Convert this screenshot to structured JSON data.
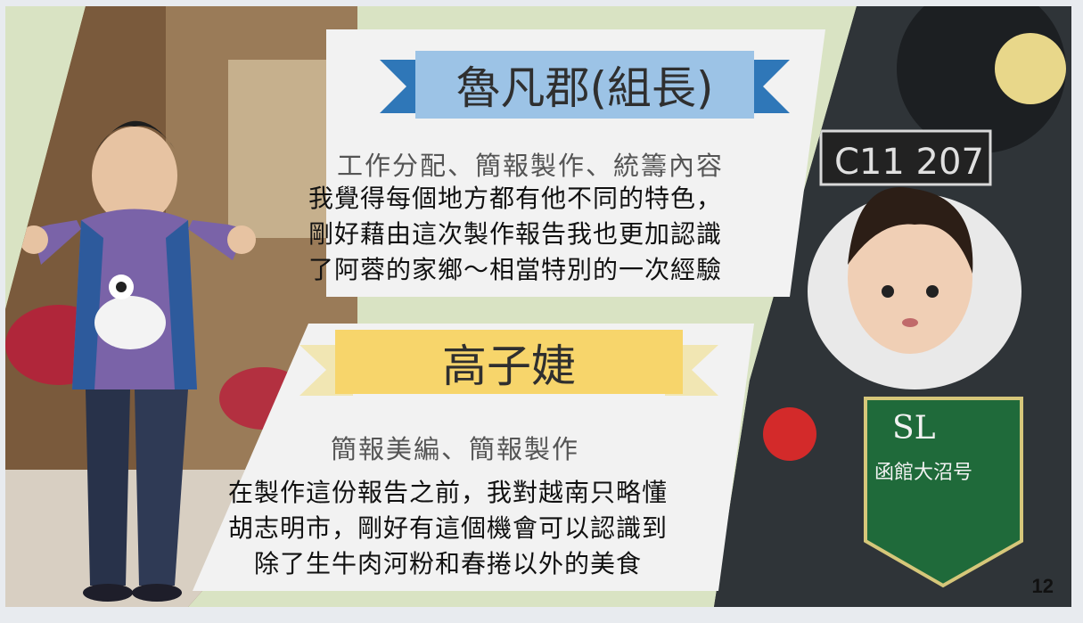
{
  "members": [
    {
      "name": "魯凡郡(組長)",
      "roles": "工作分配、簡報製作、統籌內容",
      "quote_lines": [
        "我覺得每個地方都有他不同的特色，",
        "剛好藉由這次製作報告我也更加認識",
        "了阿蓉的家鄉～相當特別的一次經驗"
      ],
      "ribbon_color": "#9cc3e6"
    },
    {
      "name": "高子婕",
      "roles": "簡報美編、簡報製作",
      "quote_lines": [
        "在製作這份報告之前，我對越南只略懂",
        "胡志明市，剛好有這個機會可以認識到",
        "除了生牛肉河粉和春捲以外的美食"
      ],
      "ribbon_color": "#f7d56b"
    }
  ],
  "page_number": "12",
  "colors": {
    "slide_bg": "#d9e3c3",
    "panel": "#f2f2f2",
    "blue_ribbon": "#9cc3e6",
    "blue_fold": "#2f77b8",
    "yellow_ribbon": "#f7d56b",
    "yellow_fold": "#f1e6b3"
  }
}
